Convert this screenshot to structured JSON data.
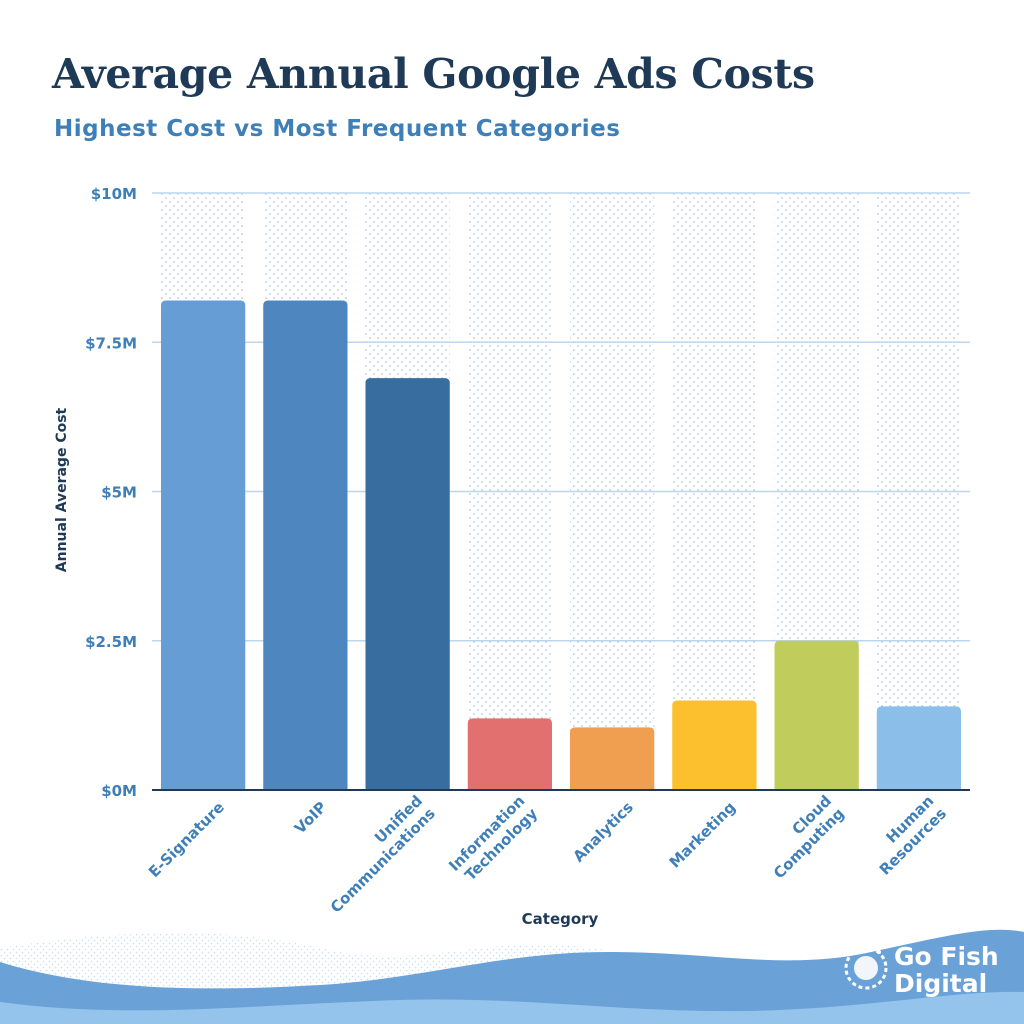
{
  "chart_data": {
    "type": "bar",
    "title": "Average Annual Google Ads Costs",
    "subtitle": "Highest Cost vs Most Frequent Categories",
    "xlabel": "Category",
    "ylabel": "Annual Average Cost",
    "categories": [
      "E-Signature",
      "VoIP",
      "Unified Communications",
      "Information Technology",
      "Analytics",
      "Marketing",
      "Cloud Computing",
      "Human Resources"
    ],
    "category_lines": [
      [
        "E-Signature"
      ],
      [
        "VoIP"
      ],
      [
        "Unified",
        "Communications"
      ],
      [
        "Information",
        "Technology"
      ],
      [
        "Analytics"
      ],
      [
        "Marketing"
      ],
      [
        "Cloud",
        "Computing"
      ],
      [
        "Human",
        "Resources"
      ]
    ],
    "values": [
      8.2,
      8.2,
      6.9,
      1.2,
      1.05,
      1.5,
      2.5,
      1.4
    ],
    "value_unit": "millions USD",
    "colors": [
      "#659dd4",
      "#4e86bf",
      "#386d9f",
      "#e2706f",
      "#f09e50",
      "#fcc02f",
      "#c0cc5c",
      "#8bbfe9"
    ],
    "ylim": [
      0,
      10
    ],
    "yticks": [
      0,
      2.5,
      5,
      7.5,
      10
    ],
    "ytick_labels": [
      "$0M",
      "$2.5M",
      "$5M",
      "$7.5M",
      "$10M"
    ],
    "grid": true,
    "legend": false
  },
  "brand": {
    "name_line1": "Go Fish",
    "name_line2": "Digital"
  },
  "theme": {
    "title_color": "#1e3a56",
    "accent_color": "#3f7fb8",
    "gridline_color": "#bcd6ee",
    "dot_color": "#a9c8e6",
    "wave_colors": [
      "#6aa2d8",
      "#4f8bc9",
      "#94c4ec"
    ]
  }
}
